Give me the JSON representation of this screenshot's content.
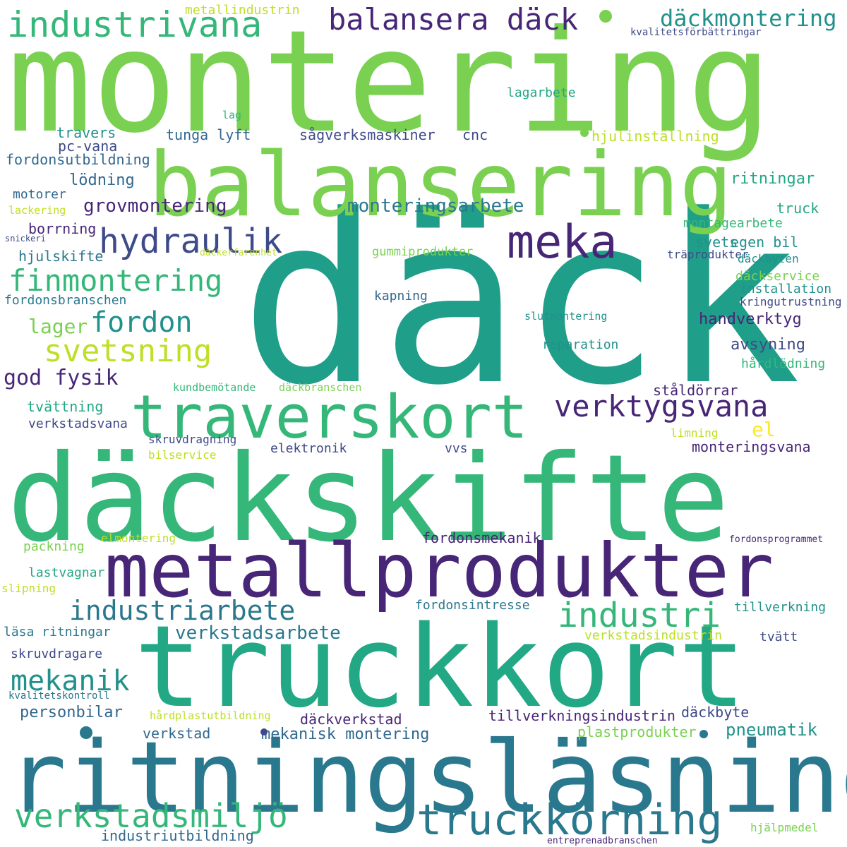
{
  "words": [
    {
      "text": "däck",
      "color": "#1f9e89"
    },
    {
      "text": "montering",
      "color": "#7ad151"
    },
    {
      "text": "balansering",
      "color": "#7ad151"
    },
    {
      "text": "däckskifte",
      "color": "#35b779"
    },
    {
      "text": "truckkort",
      "color": "#22a884"
    },
    {
      "text": "ritningsläsning",
      "color": "#2a788e"
    },
    {
      "text": "metallprodukter",
      "color": "#482677"
    },
    {
      "text": "traverskort",
      "color": "#35b779"
    },
    {
      "text": "industrivana",
      "color": "#35b779"
    },
    {
      "text": "balansera däck",
      "color": "#482677"
    },
    {
      "text": "däckmontering",
      "color": "#21918c"
    },
    {
      "text": "metallindustrin",
      "color": "#bddf26"
    },
    {
      "text": "kvalitetsförbättringar",
      "color": "#3e4a89"
    },
    {
      "text": "lagarbete",
      "color": "#22a884"
    },
    {
      "text": "lag",
      "color": "#35b779"
    },
    {
      "text": "hjulinställning",
      "color": "#bddf26"
    },
    {
      "text": "travers",
      "color": "#21918c"
    },
    {
      "text": "tunga lyft",
      "color": "#31688e"
    },
    {
      "text": "sågverksmaskiner",
      "color": "#3e4a89"
    },
    {
      "text": "cnc",
      "color": "#3e4a89"
    },
    {
      "text": "pc-vana",
      "color": "#3e4a89"
    },
    {
      "text": "fordonsutbildning",
      "color": "#31688e"
    },
    {
      "text": "lödning",
      "color": "#31688e"
    },
    {
      "text": "ritningar",
      "color": "#22a884"
    },
    {
      "text": "motorer",
      "color": "#31688e"
    },
    {
      "text": "grovmontering",
      "color": "#482677"
    },
    {
      "text": "monteringsarbete",
      "color": "#2a788e"
    },
    {
      "text": "hydraulik",
      "color": "#3e4a89"
    },
    {
      "text": "meka",
      "color": "#482677"
    },
    {
      "text": "truck",
      "color": "#22a884"
    },
    {
      "text": "lackering",
      "color": "#bddf26"
    },
    {
      "text": "montagearbete",
      "color": "#35b779"
    },
    {
      "text": "borrning",
      "color": "#482677"
    },
    {
      "text": "snickeri",
      "color": "#3e4a89"
    },
    {
      "text": "egen bil",
      "color": "#21918c"
    },
    {
      "text": "svets",
      "color": "#21918c"
    },
    {
      "text": "hjulskifte",
      "color": "#2a788e"
    },
    {
      "text": "däckerfarenhet",
      "color": "#bddf26"
    },
    {
      "text": "gummiprodukter",
      "color": "#7ad151"
    },
    {
      "text": "träprodukter",
      "color": "#3e4a89"
    },
    {
      "text": "däckbyten",
      "color": "#21918c"
    },
    {
      "text": "finmontering",
      "color": "#35b779"
    },
    {
      "text": "däckservice",
      "color": "#7ad151"
    },
    {
      "text": "installation",
      "color": "#21918c"
    },
    {
      "text": "fordonsbranschen",
      "color": "#2a788e"
    },
    {
      "text": "kapning",
      "color": "#31688e"
    },
    {
      "text": "kringutrustning",
      "color": "#3e4a89"
    },
    {
      "text": "slutmontering",
      "color": "#21918c"
    },
    {
      "text": "lager",
      "color": "#7ad151"
    },
    {
      "text": "fordon",
      "color": "#21918c"
    },
    {
      "text": "handverktyg",
      "color": "#482677"
    },
    {
      "text": "svetsning",
      "color": "#bddf26"
    },
    {
      "text": "avsyning",
      "color": "#3e4a89"
    },
    {
      "text": "reparation",
      "color": "#21918c"
    },
    {
      "text": "hårdlödning",
      "color": "#35b779"
    },
    {
      "text": "god fysik",
      "color": "#482677"
    },
    {
      "text": "kundbemötande",
      "color": "#35b779"
    },
    {
      "text": "däckbranschen",
      "color": "#7ad151"
    },
    {
      "text": "ståldörrar",
      "color": "#482677"
    },
    {
      "text": "verktygsvana",
      "color": "#482677"
    },
    {
      "text": "tvättning",
      "color": "#22a884"
    },
    {
      "text": "el",
      "color": "#fde725"
    },
    {
      "text": "verkstadsvana",
      "color": "#3e4a89"
    },
    {
      "text": "limning",
      "color": "#bddf26"
    },
    {
      "text": "skruvdragning",
      "color": "#3e4a89"
    },
    {
      "text": "monteringsvana",
      "color": "#482677"
    },
    {
      "text": "bilservice",
      "color": "#bddf26"
    },
    {
      "text": "elektronik",
      "color": "#3e4a89"
    },
    {
      "text": "vvs",
      "color": "#3e4a89"
    },
    {
      "text": "elmontering",
      "color": "#bddf26"
    },
    {
      "text": "packning",
      "color": "#7ad151"
    },
    {
      "text": "fordonsmekanik",
      "color": "#482677"
    },
    {
      "text": "fordonsprogrammet",
      "color": "#482677"
    },
    {
      "text": "lastvagnar",
      "color": "#22a884"
    },
    {
      "text": "slipning",
      "color": "#bddf26"
    },
    {
      "text": "industriarbete",
      "color": "#2a788e"
    },
    {
      "text": "industri",
      "color": "#35b779"
    },
    {
      "text": "fordonsintresse",
      "color": "#2a788e"
    },
    {
      "text": "tillverkning",
      "color": "#21918c"
    },
    {
      "text": "läsa ritningar",
      "color": "#2a788e"
    },
    {
      "text": "verkstadsarbete",
      "color": "#2a788e"
    },
    {
      "text": "verkstadsindustrin",
      "color": "#bddf26"
    },
    {
      "text": "tvätt",
      "color": "#3e4a89"
    },
    {
      "text": "skruvdragare",
      "color": "#3e4a89"
    },
    {
      "text": "mekanik",
      "color": "#21918c"
    },
    {
      "text": "kvalitetskontroll",
      "color": "#2a788e"
    },
    {
      "text": "hårdplastutbildning",
      "color": "#bddf26"
    },
    {
      "text": "tillverkningsindustrin",
      "color": "#482677"
    },
    {
      "text": "däckbyte",
      "color": "#3e4a89"
    },
    {
      "text": "personbilar",
      "color": "#31688e"
    },
    {
      "text": "däckverkstad",
      "color": "#482677"
    },
    {
      "text": "pneumatik",
      "color": "#21918c"
    },
    {
      "text": "verkstad",
      "color": "#31688e"
    },
    {
      "text": "mekanisk montering",
      "color": "#31688e"
    },
    {
      "text": "plastprodukter",
      "color": "#7ad151"
    },
    {
      "text": "verkstadsmiljö",
      "color": "#35b779"
    },
    {
      "text": "truckkörning",
      "color": "#2a788e"
    },
    {
      "text": "industriutbildning",
      "color": "#31688e"
    },
    {
      "text": "hjälpmedel",
      "color": "#7ad151"
    },
    {
      "text": "entreprenadbranschen",
      "color": "#482677"
    }
  ]
}
